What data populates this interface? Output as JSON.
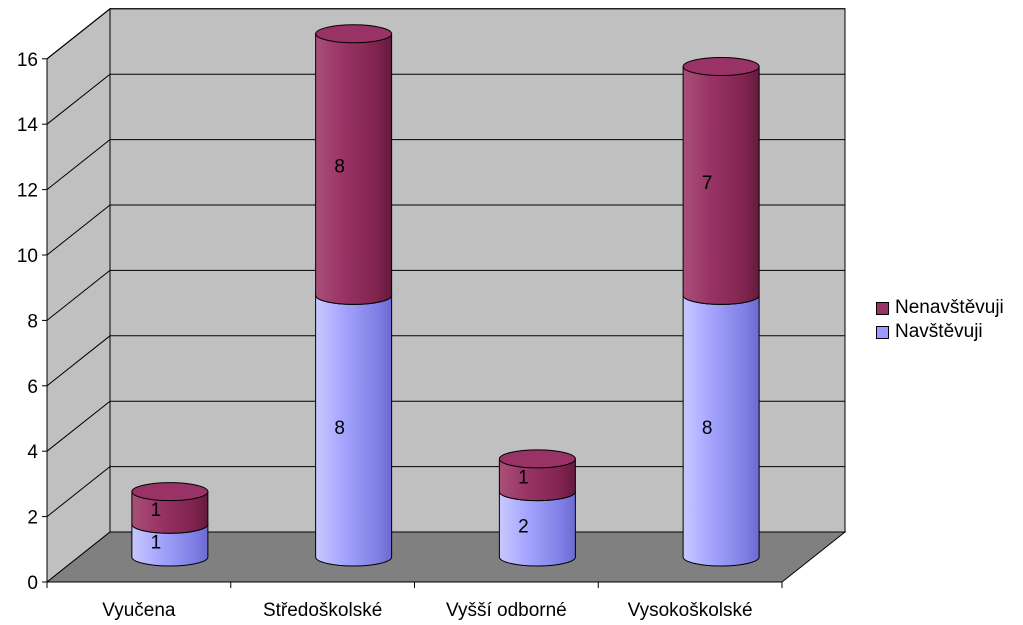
{
  "chart_data": {
    "type": "bar",
    "stacked": true,
    "style": "3d-cylinder",
    "categories": [
      "Vyučena",
      "Středoškolské",
      "Vyšší odborné",
      "Vysokoškolské"
    ],
    "series": [
      {
        "name": "Navštěvuji",
        "values": [
          1,
          8,
          2,
          8
        ],
        "color": "#9999ff"
      },
      {
        "name": "Nenavštěvuji",
        "values": [
          1,
          8,
          1,
          7
        ],
        "color": "#993366"
      }
    ],
    "yticks": [
      "0",
      "2",
      "4",
      "6",
      "8",
      "10",
      "12",
      "14",
      "16"
    ],
    "ylim": [
      0,
      16
    ],
    "title": "",
    "xlabel": "",
    "ylabel": "",
    "grid": true,
    "legend_position": "right",
    "wall_color": "#c0c0c0",
    "floor_color": "#808080"
  },
  "legend": {
    "items": [
      {
        "label": "Nenavštěvuji",
        "color": "#993366"
      },
      {
        "label": "Navštěvuji",
        "color": "#9999ff"
      }
    ]
  }
}
